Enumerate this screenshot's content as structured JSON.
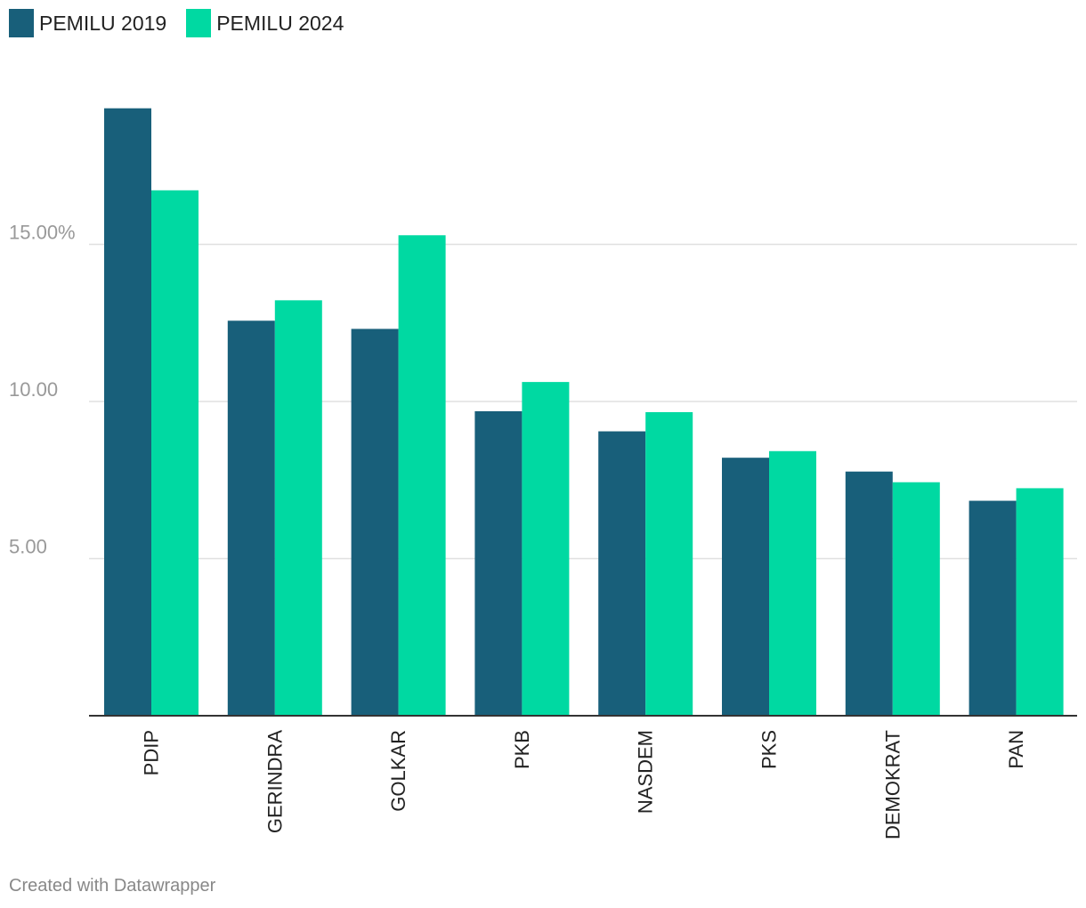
{
  "colors": {
    "series_2019": "#185f7a",
    "series_2024": "#00d9a2",
    "grid": "#e0e0e0",
    "axis": "#333333",
    "tick_text": "#999999",
    "category_text": "#222222"
  },
  "legend": {
    "items": [
      {
        "label": "PEMILU 2019"
      },
      {
        "label": "PEMILU 2024"
      }
    ]
  },
  "footer": {
    "credit": "Created with Datawrapper"
  },
  "chart_data": {
    "type": "bar",
    "categories": [
      "PDIP",
      "GERINDRA",
      "GOLKAR",
      "PKB",
      "NASDEM",
      "PKS",
      "DEMOKRAT",
      "PAN"
    ],
    "series": [
      {
        "name": "PEMILU 2019",
        "values": [
          19.33,
          12.57,
          12.31,
          9.69,
          9.05,
          8.21,
          7.77,
          6.84
        ]
      },
      {
        "name": "PEMILU 2024",
        "values": [
          16.72,
          13.22,
          15.29,
          10.62,
          9.66,
          8.42,
          7.43,
          7.24
        ]
      }
    ],
    "yticks": [
      5,
      10,
      15
    ],
    "ytick_labels": [
      "5.00",
      "10.00",
      "15.00%"
    ],
    "ylim": [
      0,
      20
    ],
    "grid": true,
    "legend_position": "top-left",
    "title": "",
    "xlabel": "",
    "ylabel": ""
  }
}
